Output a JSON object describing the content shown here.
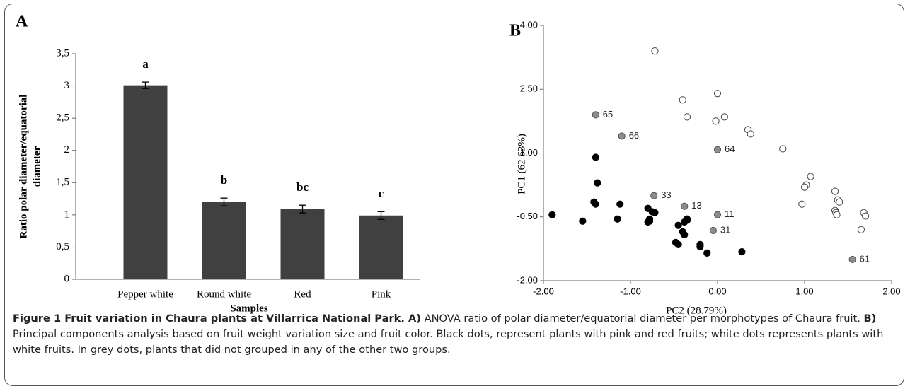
{
  "chart_data": [
    {
      "type": "bar",
      "panel": "A",
      "ylabel": [
        "Ratio polar diameter/equatorial",
        "diameter"
      ],
      "xlabel": "Samples",
      "categories": [
        "Pepper white",
        "Round white",
        "Red",
        "Pink"
      ],
      "values": [
        3.01,
        1.2,
        1.09,
        0.99
      ],
      "errors": [
        0.05,
        0.06,
        0.06,
        0.06
      ],
      "annotations": [
        "a",
        "b",
        "bc",
        "c"
      ],
      "color": "#404040",
      "ylim": [
        0,
        3.5
      ],
      "yticks": [
        0,
        {
          "value": 0.5,
          "label": "0,5"
        },
        1,
        {
          "value": 1.5,
          "label": "1,5"
        },
        2,
        {
          "value": 2.5,
          "label": "2,5"
        },
        3,
        {
          "value": 3.5,
          "label": "3,5"
        }
      ]
    },
    {
      "type": "scatter",
      "panel": "B",
      "ylabel": "PC1 (62.63%)",
      "xlabel": "PC2 (28.79%)",
      "xlim": [
        -2,
        2
      ],
      "ylim": [
        -2,
        4
      ],
      "xticks": [
        {
          "value": -2,
          "label": "-2.00"
        },
        {
          "value": -1,
          "label": "-1.00"
        },
        {
          "value": 0,
          "label": "0.00"
        },
        {
          "value": 1,
          "label": "1.00"
        },
        {
          "value": 2,
          "label": "2.00"
        }
      ],
      "yticks": [
        {
          "value": -2,
          "label": "-2.00"
        },
        {
          "value": -0.5,
          "label": "-0.50"
        },
        {
          "value": 1,
          "label": "1.00"
        },
        {
          "value": 2.5,
          "label": "2.50"
        },
        {
          "value": 4,
          "label": "4.00"
        }
      ],
      "series": [
        {
          "color": "#000000",
          "stroke": "#000000",
          "x": [
            -1.9,
            -1.55,
            -1.4,
            -1.38,
            -1.42,
            -1.4,
            -1.15,
            -1.12,
            -0.8,
            -0.78,
            -0.78,
            -0.75,
            -0.72,
            -0.8,
            -0.45,
            -0.4,
            -0.38,
            -0.48,
            -0.45,
            -0.35,
            -0.38,
            -0.35,
            -0.2,
            -0.2,
            -0.12,
            0.28
          ],
          "values": [
            -0.45,
            -0.6,
            0.9,
            0.3,
            -0.15,
            -0.2,
            -0.55,
            -0.2,
            -0.3,
            -0.55,
            -0.6,
            -0.38,
            -0.4,
            -0.62,
            -0.7,
            -0.85,
            -0.92,
            -1.1,
            -1.15,
            -0.58,
            -0.62,
            -0.55,
            -1.15,
            -1.2,
            -1.35,
            -1.32
          ]
        },
        {
          "color": "#8c8c8c",
          "stroke": "#555555",
          "x": [
            -1.4,
            -1.1,
            0.0,
            -0.73,
            -0.38,
            0.0,
            -0.05,
            1.55
          ],
          "values": [
            1.9,
            1.4,
            1.08,
            0.0,
            -0.25,
            -0.45,
            -0.82,
            -1.5
          ],
          "labels": [
            "65",
            "66",
            "64",
            "33",
            "13",
            "11",
            "31",
            "61"
          ]
        },
        {
          "color": "#ffffff",
          "stroke": "#444444",
          "x": [
            -0.72,
            -0.4,
            -0.35,
            0.0,
            -0.02,
            0.08,
            0.35,
            0.38,
            0.75,
            1.07,
            1.02,
            1.0,
            0.97,
            1.35,
            1.38,
            1.4,
            1.35,
            1.36,
            1.37,
            1.68,
            1.7,
            1.65
          ],
          "values": [
            3.4,
            2.25,
            1.85,
            2.4,
            1.75,
            1.85,
            1.55,
            1.45,
            1.1,
            0.45,
            0.25,
            0.2,
            -0.2,
            0.1,
            -0.1,
            -0.15,
            -0.35,
            -0.4,
            -0.45,
            -0.4,
            -0.48,
            -0.8
          ]
        }
      ]
    }
  ],
  "caption": [
    {
      "text": "Figure 1 Fruit variation in Chaura plants at Villarrica National Park. A)",
      "bold": true
    },
    {
      "text": " ANOVA ratio of polar diameter/equatorial diameter per morphotypes of Chaura fruit. ",
      "bold": false
    },
    {
      "text": "B)",
      "bold": true
    },
    {
      "text": " Principal components analysis based on fruit weight variation size and fruit color. Black dots, represent plants with pink and red fruits; white dots represents plants with white fruits. In grey dots, plants that did not grouped in any of the other two groups.",
      "bold": false
    }
  ]
}
